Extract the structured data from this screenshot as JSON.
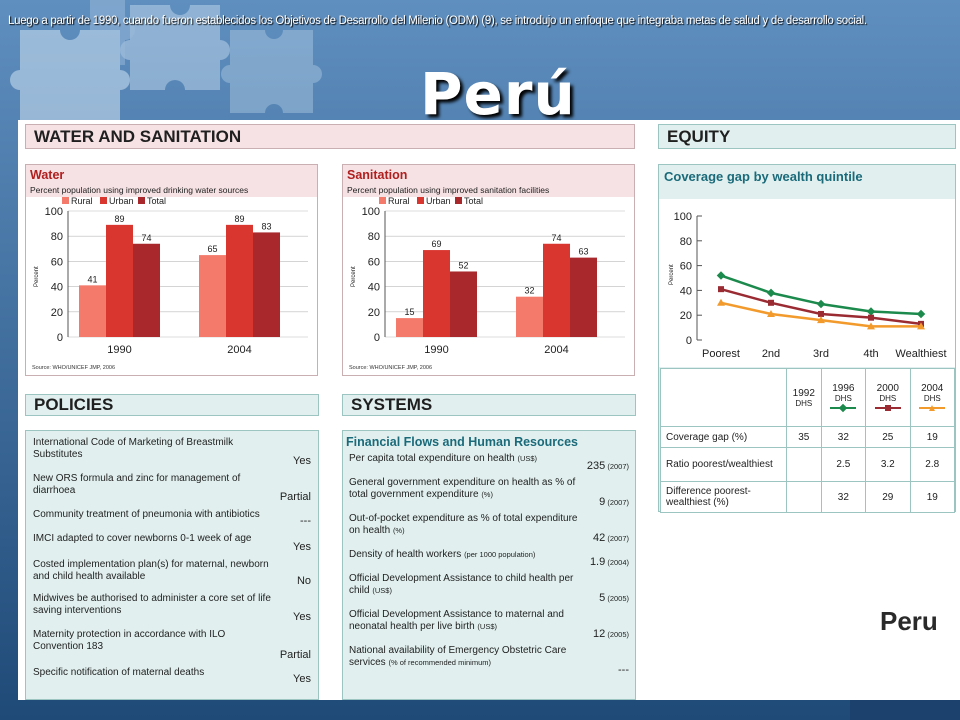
{
  "caption": "Luego a partir de 1990, cuando fueron establecidos los Objetivos de Desarrollo del Milenio (ODM) (9), se  introdujo un enfoque que integraba metas de salud y de desarrollo social.",
  "slide_title": "Perú",
  "sections": {
    "water_sanitation": "WATER AND SANITATION",
    "equity": "EQUITY",
    "policies": "POLICIES",
    "systems": "SYSTEMS"
  },
  "country_label": "Peru",
  "colors": {
    "rural": "#f47a6c",
    "urban": "#d93630",
    "total": "#a8282c",
    "line1992": "#1c8a4c",
    "line2000": "#9b2b33",
    "line2004": "#f39a2c"
  },
  "chart_data": [
    {
      "type": "bar",
      "title": "Water",
      "subtitle": "Percent population using improved drinking water sources",
      "ylabel": "Percent",
      "source": "Source: WHO/UNICEF JMP, 2006",
      "categories": [
        "1990",
        "2004"
      ],
      "ylim": [
        0,
        100
      ],
      "yticks": [
        "0",
        "20",
        "40",
        "60",
        "80",
        "100"
      ],
      "series": [
        {
          "name": "Rural",
          "values": [
            41,
            65
          ]
        },
        {
          "name": "Urban",
          "values": [
            89,
            89
          ]
        },
        {
          "name": "Total",
          "values": [
            74,
            83
          ]
        }
      ]
    },
    {
      "type": "bar",
      "title": "Sanitation",
      "subtitle": "Percent population using improved sanitation facilities",
      "ylabel": "Percent",
      "source": "Source: WHO/UNICEF JMP, 2006",
      "categories": [
        "1990",
        "2004"
      ],
      "ylim": [
        0,
        100
      ],
      "yticks": [
        "0",
        "20",
        "40",
        "60",
        "80",
        "100"
      ],
      "series": [
        {
          "name": "Rural",
          "values": [
            15,
            32
          ]
        },
        {
          "name": "Urban",
          "values": [
            69,
            74
          ]
        },
        {
          "name": "Total",
          "values": [
            52,
            63
          ]
        }
      ]
    },
    {
      "type": "line",
      "title": "Coverage gap by wealth quintile",
      "ylabel": "Percent",
      "categories": [
        "Poorest",
        "2nd",
        "3rd",
        "4th",
        "Wealthiest"
      ],
      "ylim": [
        0,
        100
      ],
      "yticks": [
        "0",
        "20",
        "40",
        "60",
        "80",
        "100"
      ],
      "series": [
        {
          "name": "1996 DHS",
          "values": [
            52,
            38,
            29,
            23,
            21
          ]
        },
        {
          "name": "2000 DHS",
          "values": [
            41,
            30,
            21,
            18,
            13
          ]
        },
        {
          "name": "2004 DHS",
          "values": [
            30,
            21,
            16,
            11,
            11
          ]
        }
      ]
    }
  ],
  "equity_table": {
    "headers": [
      {
        "year": "1992",
        "survey": "DHS"
      },
      {
        "year": "1996",
        "survey": "DHS"
      },
      {
        "year": "2000",
        "survey": "DHS"
      },
      {
        "year": "2004",
        "survey": "DHS"
      }
    ],
    "rows": [
      {
        "label": "Coverage gap (%)",
        "values": [
          "35",
          "32",
          "25",
          "19"
        ]
      },
      {
        "label": "Ratio poorest/wealthiest",
        "values": [
          "",
          "2.5",
          "3.2",
          "2.8"
        ]
      },
      {
        "label": "Difference poorest-wealthiest (%)",
        "values": [
          "",
          "32",
          "29",
          "19"
        ]
      }
    ]
  },
  "policies": [
    {
      "label": "International Code of Marketing of Breastmilk Substitutes",
      "value": "Yes"
    },
    {
      "label": "New ORS formula and zinc for management of diarrhoea",
      "value": "Partial"
    },
    {
      "label": "Community treatment of pneumonia with antibiotics",
      "value": "---"
    },
    {
      "label": "IMCI adapted to cover newborns 0-1 week of age",
      "value": "Yes"
    },
    {
      "label": "Costed implementation plan(s) for maternal, newborn and child health available",
      "value": "No"
    },
    {
      "label": "Midwives be authorised to administer a core set of life saving interventions",
      "value": "Yes"
    },
    {
      "label": "Maternity protection in accordance with ILO Convention 183",
      "value": "Partial"
    },
    {
      "label": "Specific notification of maternal deaths",
      "value": "Yes"
    }
  ],
  "systems": {
    "title": "Financial Flows and Human Resources",
    "rows": [
      {
        "label": "Per capita total expenditure on health",
        "unit": "(US$)",
        "value": "235",
        "year": "(2007)"
      },
      {
        "label": "General government expenditure on health as % of total government expenditure",
        "unit": "(%)",
        "value": "9",
        "year": "(2007)"
      },
      {
        "label": "Out-of-pocket expenditure as % of total expenditure on health",
        "unit": "(%)",
        "value": "42",
        "year": "(2007)"
      },
      {
        "label": "Density of health workers",
        "unit": "(per 1000 population)",
        "value": "1.9",
        "year": "(2004)"
      },
      {
        "label": "Official Development Assistance to child health per child",
        "unit": "(US$)",
        "value": "5",
        "year": "(2005)"
      },
      {
        "label": "Official Development Assistance to maternal and neonatal health per live birth",
        "unit": "(US$)",
        "value": "12",
        "year": "(2005)"
      },
      {
        "label": "National availability of Emergency Obstetric Care services",
        "unit": "(% of recommended minimum)",
        "value": "---",
        "year": ""
      }
    ]
  }
}
